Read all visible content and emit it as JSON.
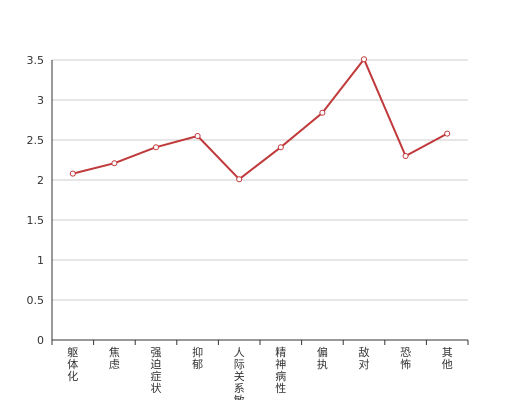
{
  "chart_data": {
    "type": "line",
    "categories": [
      "躯体化",
      "焦虑",
      "强迫症状",
      "抑郁",
      "人际关系敏感",
      "精神病性",
      "偏执",
      "敌对",
      "恐怖",
      "其他"
    ],
    "series": [
      {
        "values": [
          2.08,
          2.21,
          2.41,
          2.55,
          2.01,
          2.41,
          2.84,
          3.51,
          2.3,
          2.58
        ]
      }
    ],
    "y_ticks": [
      "0",
      "0.5",
      "1",
      "1.5",
      "2",
      "2.5",
      "3",
      "3.5"
    ],
    "ylim": [
      0,
      3.5
    ],
    "grid": true,
    "line_color": "#c0393b",
    "grid_color": "#cccccc",
    "axis_color": "#333333"
  }
}
